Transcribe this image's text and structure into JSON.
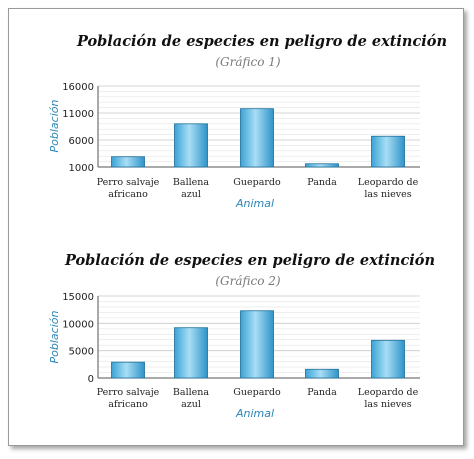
{
  "chart_data": [
    {
      "type": "bar",
      "title": "Población de especies en peligro de extinción",
      "subtitle": "(Gráfico 1)",
      "xlabel": "Animal",
      "ylabel": "Población",
      "ylim": [
        1000,
        16000
      ],
      "yticks": [
        "1000",
        "6000",
        "11000",
        "16000"
      ],
      "tick_values": [
        1000,
        6000,
        11000,
        16000
      ],
      "categories": [
        [
          "Perro salvaje",
          "africano"
        ],
        [
          "Ballena",
          "azul"
        ],
        [
          "Guepardo"
        ],
        [
          "Panda"
        ],
        [
          "Leopardo de",
          "las nieves"
        ]
      ],
      "values": [
        2900,
        9000,
        11800,
        1600,
        6700
      ],
      "grid": true
    },
    {
      "type": "bar",
      "title": "Población de especies en peligro de extinción",
      "subtitle": "(Gráfico 2)",
      "xlabel": "Animal",
      "ylabel": "Población",
      "ylim": [
        0,
        15000
      ],
      "yticks": [
        "0",
        "5000",
        "10000",
        "15000"
      ],
      "tick_values": [
        0,
        5000,
        10000,
        15000
      ],
      "categories": [
        [
          "Perro salvaje",
          "africano"
        ],
        [
          "Ballena",
          "azul"
        ],
        [
          "Guepardo"
        ],
        [
          "Panda"
        ],
        [
          "Leopardo de",
          "las nieves"
        ]
      ],
      "values": [
        2900,
        9200,
        12300,
        1600,
        6900
      ],
      "grid": true
    }
  ]
}
